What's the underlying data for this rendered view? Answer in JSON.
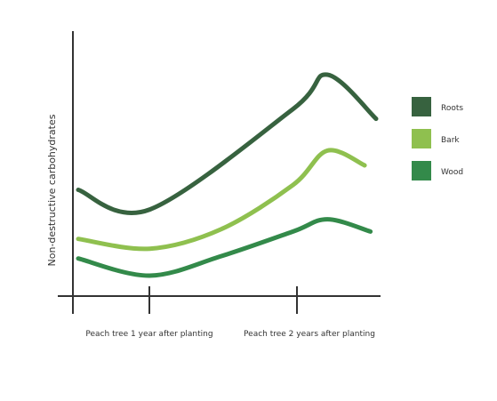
{
  "chart_data": {
    "type": "line",
    "title": "",
    "xlabel": "",
    "ylabel": "Non-destructive carbohydrates",
    "grid": false,
    "legend_position": "right",
    "x_ticks": [
      {
        "label": "Peach tree 1 year after planting"
      },
      {
        "label": "Peach tree 2 years after planting"
      }
    ],
    "series": [
      {
        "name": "Roots",
        "color": "#37623f",
        "points": [
          [
            0.0,
            42
          ],
          [
            0.25,
            34
          ],
          [
            0.75,
            75
          ],
          [
            0.87,
            89
          ],
          [
            1.04,
            71
          ]
        ]
      },
      {
        "name": "Bark",
        "color": "#8fc04f",
        "points": [
          [
            0.0,
            22
          ],
          [
            0.25,
            18
          ],
          [
            0.5,
            26
          ],
          [
            0.75,
            44
          ],
          [
            0.87,
            58
          ],
          [
            1.0,
            52
          ]
        ]
      },
      {
        "name": "Wood",
        "color": "#338a4a",
        "points": [
          [
            0.0,
            14
          ],
          [
            0.25,
            7
          ],
          [
            0.5,
            15
          ],
          [
            0.75,
            25
          ],
          [
            0.87,
            30
          ],
          [
            1.02,
            25
          ]
        ]
      }
    ]
  }
}
